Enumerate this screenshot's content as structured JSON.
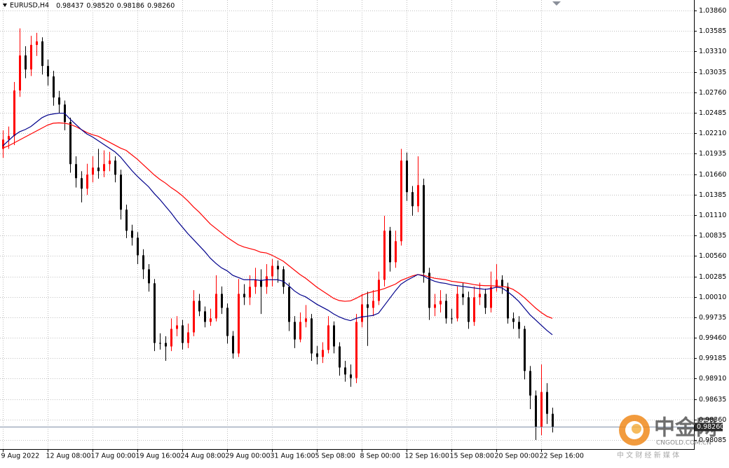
{
  "chart_data": {
    "type": "candlestick",
    "title": "EURUSD,H4",
    "title_prices": [
      "0.98437",
      "0.98520",
      "0.98186",
      "0.98260"
    ],
    "up_color": "#ff0000",
    "down_color": "#000000",
    "grid": true,
    "ylim": [
      0.97972,
      1.04002
    ],
    "yticks": [
      {
        "value": 1.0386,
        "label": "1.03860"
      },
      {
        "value": 1.03585,
        "label": "1.03585"
      },
      {
        "value": 1.0331,
        "label": "1.03310"
      },
      {
        "value": 1.03035,
        "label": "1.03035"
      },
      {
        "value": 1.0276,
        "label": "1.02760"
      },
      {
        "value": 1.02485,
        "label": "1.02485"
      },
      {
        "value": 1.0221,
        "label": "1.02210"
      },
      {
        "value": 1.01935,
        "label": "1.01935"
      },
      {
        "value": 1.0166,
        "label": "1.01660"
      },
      {
        "value": 1.01385,
        "label": "1.01385"
      },
      {
        "value": 1.0111,
        "label": "1.01110"
      },
      {
        "value": 1.00835,
        "label": "1.00835"
      },
      {
        "value": 1.0056,
        "label": "1.00560"
      },
      {
        "value": 1.00285,
        "label": "1.00285"
      },
      {
        "value": 1.0001,
        "label": "1.00010"
      },
      {
        "value": 0.99735,
        "label": "0.99735"
      },
      {
        "value": 0.9946,
        "label": "0.99460"
      },
      {
        "value": 0.99185,
        "label": "0.99185"
      },
      {
        "value": 0.9891,
        "label": "0.98910"
      },
      {
        "value": 0.98635,
        "label": "0.98635"
      },
      {
        "value": 0.9836,
        "label": "0.98360"
      },
      {
        "value": 0.98085,
        "label": "0.98085"
      }
    ],
    "current_price": {
      "value": 0.9826,
      "label": "0.98260"
    },
    "categories": [
      "9 Aug 2022",
      null,
      null,
      null,
      null,
      null,
      null,
      null,
      "12 Aug 08:00",
      null,
      null,
      null,
      null,
      null,
      null,
      null,
      "17 Aug 00:00",
      null,
      null,
      null,
      null,
      null,
      null,
      null,
      "19 Aug 16:00",
      null,
      null,
      null,
      null,
      null,
      null,
      null,
      "24 Aug 08:00",
      null,
      null,
      null,
      null,
      null,
      null,
      null,
      "29 Aug 00:00",
      null,
      null,
      null,
      null,
      null,
      null,
      null,
      "31 Aug 16:00",
      null,
      null,
      null,
      null,
      null,
      null,
      null,
      "5 Sep 08:00",
      null,
      null,
      null,
      null,
      null,
      null,
      null,
      "8 Sep 00:00",
      null,
      null,
      null,
      null,
      null,
      null,
      null,
      "12 Sep 16:00",
      null,
      null,
      null,
      null,
      null,
      null,
      null,
      "15 Sep 08:00",
      null,
      null,
      null,
      null,
      null,
      null,
      null,
      "20 Sep 00:00",
      null,
      null,
      null,
      null,
      null,
      null,
      null,
      "22 Sep 16:00",
      null,
      null
    ],
    "open": [
      1.02,
      1.02125,
      1.02172,
      1.02785,
      1.03256,
      1.03068,
      1.03398,
      1.03445,
      1.03115,
      1.02974,
      1.02691,
      1.02596,
      1.02361,
      1.01795,
      1.01606,
      1.01465,
      1.01653,
      1.01748,
      1.01701,
      1.01795,
      1.01842,
      1.01653,
      1.01182,
      1.00899,
      1.00805,
      1.00569,
      1.0038,
      1.00192,
      0.9939,
      0.9939,
      0.99343,
      0.99579,
      0.99626,
      0.9939,
      0.99532,
      0.99956,
      0.99815,
      0.99673,
      0.9972,
      1.0005,
      0.99862,
      0.99484,
      0.99249,
      1.0005,
      1.00003,
      1.00145,
      1.00239,
      1.00145,
      1.00286,
      1.00427,
      1.0038,
      1.00145,
      0.99673,
      0.99437,
      0.99673,
      0.9972,
      0.99249,
      0.99202,
      0.99296,
      0.99626,
      0.99343,
      0.9906,
      0.98966,
      0.98919,
      0.99673,
      0.99909,
      0.99862,
      0.99956,
      1.00239,
      1.00899,
      1.00475,
      1.00758,
      1.01842,
      1.01418,
      1.01229,
      1.01512,
      1.00333,
      0.99862,
      0.99909,
      0.99956,
      0.9972,
      0.9972,
      1.0005,
      1.00003,
      0.99673,
      1.00003,
      1.0005,
      0.99862,
      1.00145,
      1.00239,
      1.00145,
      0.9972,
      0.99673,
      0.99579,
      0.99013,
      0.98683,
      0.98259,
      0.9873,
      0.98437
    ],
    "high": [
      1.0225,
      1.023,
      1.029,
      1.0362,
      1.0338,
      1.0352,
      1.0356,
      1.035,
      1.032,
      1.0305,
      1.0278,
      1.0265,
      1.0242,
      1.019,
      1.017,
      1.018,
      1.019,
      1.02,
      1.0198,
      1.0196,
      1.019,
      1.0172,
      1.0125,
      1.0098,
      1.0088,
      1.0065,
      1.0045,
      1.0025,
      0.9952,
      0.9948,
      0.9972,
      0.9975,
      0.997,
      0.9965,
      1.001,
      1.0005,
      0.9988,
      0.9985,
      1.003,
      1.0015,
      0.9992,
      0.9955,
      1.0025,
      1.0018,
      1.003,
      1.004,
      1.0038,
      1.0045,
      1.0052,
      1.005,
      1.0042,
      1.002,
      0.9975,
      0.998,
      0.999,
      0.9978,
      0.9935,
      0.994,
      0.9975,
      0.9968,
      0.994,
      0.9915,
      0.991,
      0.9978,
      1.0005,
      1.0008,
      1.001,
      1.0035,
      1.011,
      1.0095,
      1.009,
      1.02,
      1.0195,
      1.015,
      1.019,
      1.016,
      1.004,
      1.0005,
      1.001,
      1.0005,
      0.9985,
      1.0015,
      1.002,
      1.0008,
      1.0015,
      1.002,
      1.0012,
      1.0035,
      1.0045,
      1.003,
      1.002,
      0.998,
      0.9975,
      0.9962,
      0.9908,
      0.9875,
      0.991,
      0.9885,
      0.9852
    ],
    "low": [
      1.0188,
      1.02,
      1.0205,
      1.027,
      1.0295,
      1.0298,
      1.0325,
      1.03,
      1.0285,
      1.0258,
      1.0248,
      1.0225,
      1.0168,
      1.0148,
      1.0128,
      1.0138,
      1.0155,
      1.016,
      1.0162,
      1.017,
      1.0155,
      1.0105,
      1.008,
      1.007,
      1.0045,
      1.0025,
      1.0008,
      0.9928,
      0.993,
      0.9915,
      0.9928,
      0.9948,
      0.993,
      0.9932,
      0.9948,
      0.9975,
      0.996,
      0.9962,
      0.9968,
      0.9978,
      0.9938,
      0.9918,
      0.992,
      0.999,
      0.999,
      1.0005,
      0.9978,
      1.0005,
      1.0015,
      1.002,
      1.0005,
      0.9955,
      0.9932,
      0.994,
      0.996,
      0.9915,
      0.991,
      0.9912,
      0.9925,
      0.9925,
      0.9895,
      0.9887,
      0.988,
      0.9885,
      0.996,
      0.9935,
      0.9975,
      0.999,
      1.0015,
      1.0035,
      1.004,
      1.007,
      1.013,
      1.011,
      1.0115,
      1.002,
      0.997,
      0.9975,
      0.998,
      0.9965,
      0.9965,
      0.9968,
      0.999,
      0.9958,
      0.9962,
      0.999,
      0.9978,
      0.998,
      1.0008,
      1.0005,
      0.9965,
      0.9958,
      0.9945,
      0.989,
      0.985,
      0.98085,
      0.9815,
      0.983,
      0.98186
    ],
    "close": [
      1.02125,
      1.02172,
      1.02785,
      1.03256,
      1.03068,
      1.03398,
      1.03445,
      1.03115,
      1.02974,
      1.02691,
      1.02596,
      1.02361,
      1.01795,
      1.01606,
      1.01465,
      1.01653,
      1.01748,
      1.01701,
      1.01795,
      1.01842,
      1.01653,
      1.01182,
      1.00899,
      1.00805,
      1.00569,
      1.0038,
      1.00192,
      0.9939,
      0.9939,
      0.99343,
      0.99579,
      0.99626,
      0.9939,
      0.99532,
      0.99956,
      0.99815,
      0.99673,
      0.9972,
      1.0005,
      0.99862,
      0.99484,
      0.99249,
      1.0005,
      1.00003,
      1.00145,
      1.00239,
      1.00145,
      1.00286,
      1.00427,
      1.0038,
      1.00145,
      0.99673,
      0.99437,
      0.99673,
      0.9972,
      0.99249,
      0.99202,
      0.99296,
      0.99626,
      0.99343,
      0.9906,
      0.98966,
      0.98919,
      0.99673,
      0.99909,
      0.99862,
      0.99956,
      1.00239,
      1.00899,
      1.00475,
      1.00758,
      1.01842,
      1.01418,
      1.01229,
      1.01512,
      1.00333,
      0.99862,
      0.99909,
      0.99956,
      0.9972,
      0.9972,
      1.0005,
      1.00003,
      0.99673,
      1.00003,
      1.0005,
      0.99862,
      1.00145,
      1.00239,
      1.00145,
      0.9972,
      0.99673,
      0.99579,
      0.99013,
      0.98683,
      0.98259,
      0.9873,
      0.98437,
      0.9826
    ],
    "lines": [
      {
        "color": "#ff0000",
        "values": [
          1.0201,
          1.0204,
          1.0208,
          1.0212,
          1.0216,
          1.022,
          1.0224,
          1.0228,
          1.0232,
          1.02345,
          1.0235,
          1.02345,
          1.0233,
          1.023,
          1.0226,
          1.0222,
          1.0219,
          1.0217,
          1.0213,
          1.0209,
          1.0205,
          1.0201,
          1.0198,
          1.0192,
          1.0186,
          1.0179,
          1.0172,
          1.0165,
          1.0159,
          1.0154,
          1.0148,
          1.0143,
          1.0137,
          1.013,
          1.0122,
          1.0115,
          1.0107,
          1.0099,
          1.0093,
          1.0087,
          1.0081,
          1.0076,
          1.0071,
          1.0068,
          1.0066,
          1.0064,
          1.0061,
          1.006,
          1.0057,
          1.0053,
          1.0049,
          1.0043,
          1.0037,
          1.0031,
          1.0026,
          1.002,
          1.0014,
          1.0009,
          1.0004,
          0.9999,
          0.9996,
          0.9995,
          0.99956,
          0.9999,
          1.0003,
          1.0006,
          1.0008,
          1.00097,
          1.0012,
          1.0015,
          1.0018,
          1.0023,
          1.0026,
          1.0029,
          1.0031,
          1.003,
          1.0028,
          1.0026,
          1.0025,
          1.0024,
          1.0022,
          1.0021,
          1.002,
          1.0019,
          1.00175,
          1.00165,
          1.0016,
          1.0016,
          1.00155,
          1.0015,
          1.0014,
          1.0011,
          1.0006,
          1.0,
          0.9993,
          0.9986,
          0.998,
          0.9975,
          0.9972
        ]
      },
      {
        "color": "#00008b",
        "values": [
          1.0204,
          1.0211,
          1.0218,
          1.0223,
          1.0226,
          1.023,
          1.0236,
          1.0242,
          1.02455,
          1.0247,
          1.0248,
          1.0248,
          1.024,
          1.0233,
          1.0226,
          1.022,
          1.0216,
          1.0211,
          1.0206,
          1.0201,
          1.0196,
          1.0189,
          1.018,
          1.0171,
          1.0163,
          1.0156,
          1.0149,
          1.014,
          1.0132,
          1.0123,
          1.0114,
          1.0104,
          1.0095,
          1.0086,
          1.0078,
          1.007,
          1.0062,
          1.0053,
          1.0046,
          1.004,
          1.0036,
          1.003,
          1.0027,
          1.0024,
          1.0024,
          1.0024,
          1.0023,
          1.0024,
          1.0024,
          1.0024,
          1.0022,
          1.0016,
          1.0009,
          1.0004,
          1.0001,
          0.9996,
          0.9991,
          0.9987,
          0.9983,
          0.9978,
          0.9974,
          0.9971,
          0.9969,
          0.9972,
          0.9974,
          0.9975,
          0.9976,
          0.9979,
          0.9989,
          0.9999,
          1.0009,
          1.0018,
          1.0023,
          1.0027,
          1.0031,
          1.0029,
          1.0025,
          1.0022,
          1.002,
          1.0019,
          1.0017,
          1.0016,
          1.0015,
          1.0014,
          1.0013,
          1.0012,
          1.0011,
          1.0012,
          1.0014,
          1.0013,
          1.0008,
          1.0002,
          0.9995,
          0.9986,
          0.9977,
          0.997,
          0.9963,
          0.9956,
          0.995
        ]
      }
    ]
  },
  "watermark": {
    "brand": "中金网",
    "domain": "CNGOLD.COM.CN",
    "slogan": "中 文 财 经 新 媒 体"
  }
}
